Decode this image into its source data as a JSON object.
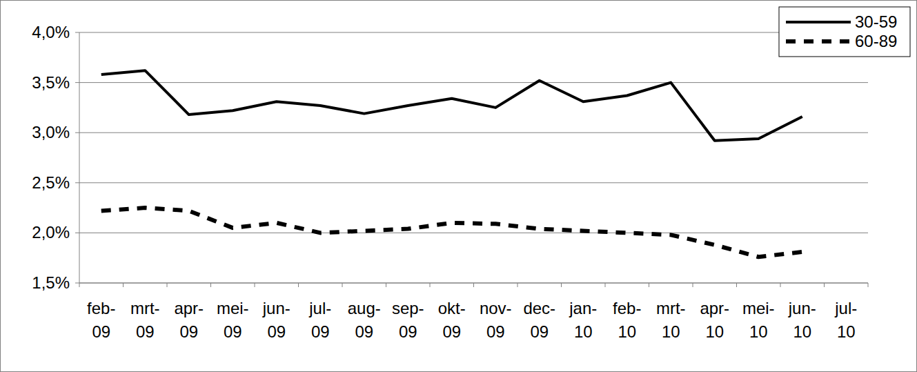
{
  "chart_data": {
    "type": "line",
    "categories": [
      "feb-09",
      "mrt-09",
      "apr-09",
      "mei-09",
      "jun-09",
      "jul-09",
      "aug-09",
      "sep-09",
      "okt-09",
      "nov-09",
      "dec-09",
      "jan-10",
      "feb-10",
      "mrt-10",
      "apr-10",
      "mei-10",
      "jun-10",
      "jul-10"
    ],
    "series": [
      {
        "name": "30-59",
        "color": "#000000",
        "line_style": "solid",
        "values": [
          3.58,
          3.62,
          3.18,
          3.22,
          3.31,
          3.27,
          3.19,
          3.27,
          3.34,
          3.25,
          3.52,
          3.31,
          3.37,
          3.5,
          2.92,
          2.94,
          3.16,
          null
        ]
      },
      {
        "name": "60-89",
        "color": "#000000",
        "line_style": "dashed",
        "values": [
          2.22,
          2.25,
          2.22,
          2.05,
          2.1,
          2.0,
          2.02,
          2.04,
          2.1,
          2.09,
          2.04,
          2.02,
          2.0,
          1.98,
          1.88,
          1.76,
          1.81,
          null
        ]
      }
    ],
    "ylim": [
      1.5,
      4.0
    ],
    "yticks": [
      {
        "value": 1.5,
        "label": "1,5%"
      },
      {
        "value": 2.0,
        "label": "2,0%"
      },
      {
        "value": 2.5,
        "label": "2,5%"
      },
      {
        "value": 3.0,
        "label": "3,0%"
      },
      {
        "value": 3.5,
        "label": "3,5%"
      },
      {
        "value": 4.0,
        "label": "4,0%"
      }
    ],
    "grid": true,
    "legend": "top-right"
  }
}
